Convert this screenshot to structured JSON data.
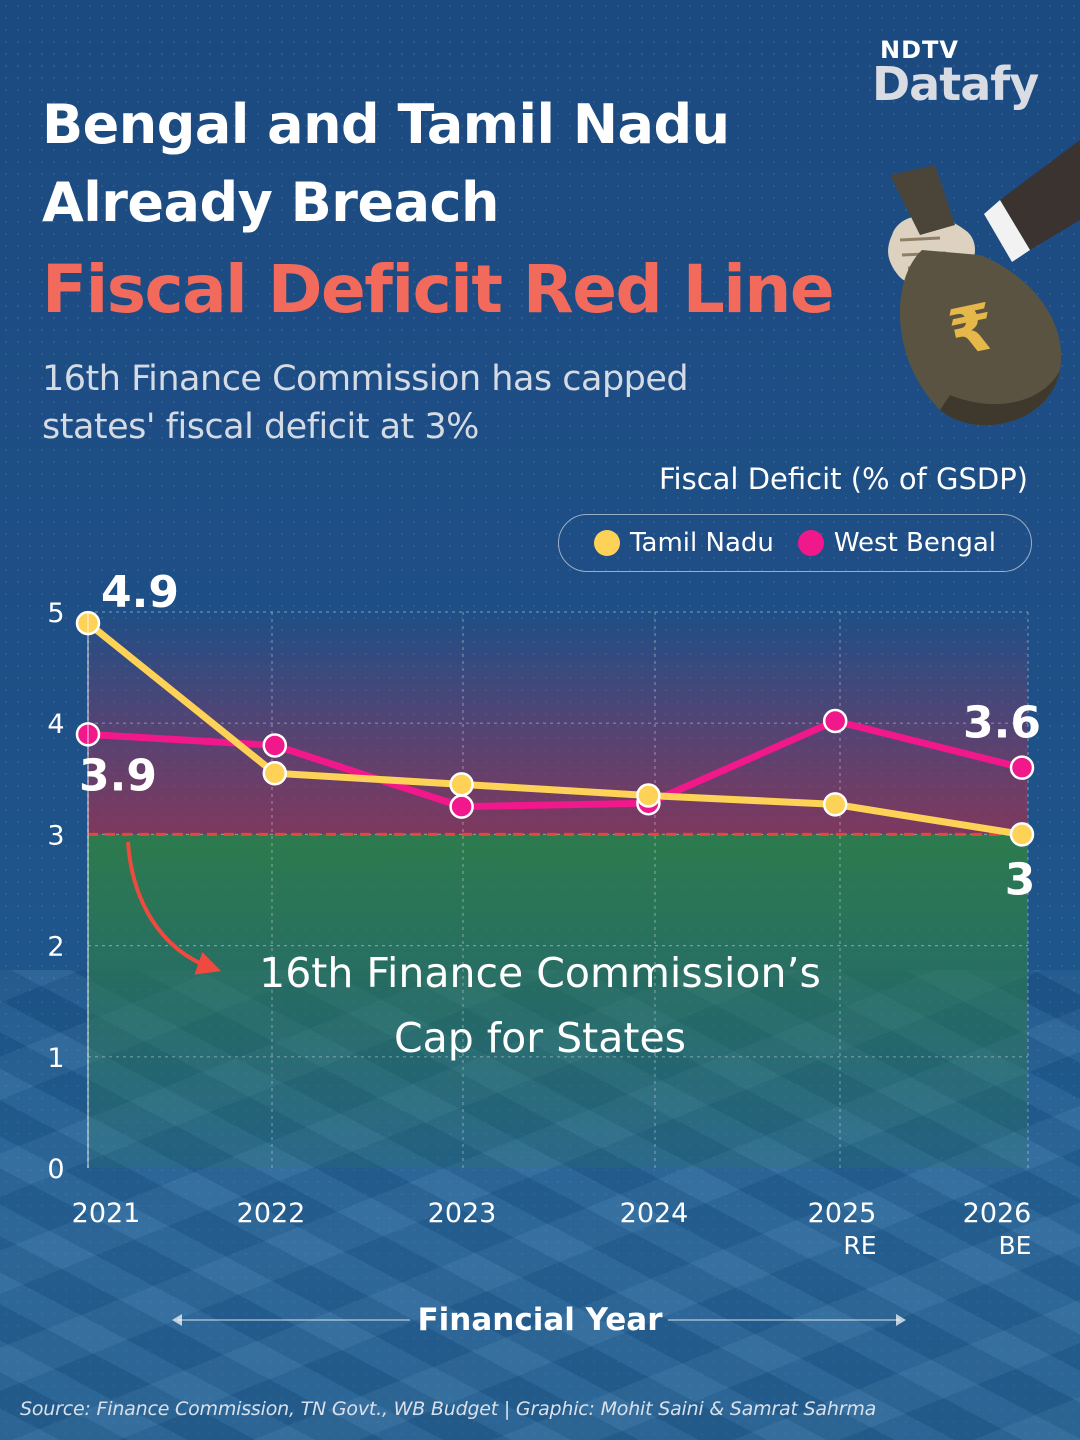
{
  "brand": {
    "ndtv": "NDTV",
    "datafy": "Datafy"
  },
  "header": {
    "title_line1": "Bengal and Tamil Nadu",
    "title_line2": "Already Breach",
    "title_highlight": "Fiscal Deficit Red Line",
    "subtitle_line1": "16th Finance Commission has capped",
    "subtitle_line2": "states' fiscal deficit at 3%"
  },
  "colors": {
    "tamil_nadu": "#fdd257",
    "west_bengal": "#f0188a",
    "cap_line": "#e8453c",
    "title_highlight": "#f26a5c"
  },
  "icons": [
    "money-bag-icon",
    "rupee-icon",
    "hand-icon"
  ],
  "chart_data": {
    "type": "line",
    "title": "Fiscal Deficit (% of GSDP)",
    "xlabel": "Financial Year",
    "ylabel": "",
    "categories": [
      {
        "year": "2021",
        "sub": ""
      },
      {
        "year": "2022",
        "sub": ""
      },
      {
        "year": "2023",
        "sub": ""
      },
      {
        "year": "2024",
        "sub": ""
      },
      {
        "year": "2025",
        "sub": "RE"
      },
      {
        "year": "2026",
        "sub": "BE"
      }
    ],
    "ylim": [
      0,
      5
    ],
    "yticks": [
      "0",
      "1",
      "2",
      "3",
      "4",
      "5"
    ],
    "grid": true,
    "legend_position": "top-right",
    "series": [
      {
        "name": "Tamil Nadu",
        "values": [
          4.9,
          3.55,
          3.45,
          3.35,
          3.27,
          3.0
        ]
      },
      {
        "name": "West Bengal",
        "values": [
          3.9,
          3.8,
          3.25,
          3.28,
          4.02,
          3.6
        ]
      }
    ],
    "data_labels": [
      {
        "series": "Tamil Nadu",
        "index": 0,
        "text": "4.9"
      },
      {
        "series": "West Bengal",
        "index": 0,
        "text": "3.9"
      },
      {
        "series": "West Bengal",
        "index": 5,
        "text": "3.6"
      },
      {
        "series": "Tamil Nadu",
        "index": 5,
        "text": "3"
      }
    ],
    "reference_line": {
      "value": 3,
      "style": "dashed"
    },
    "annotation": {
      "line1": "16th Finance Commission’s",
      "line2": "Cap for States"
    }
  },
  "footer": {
    "source": "Source: Finance Commission, TN Govt., WB Budget  | Graphic: Mohit Saini & Samrat Sahrma"
  }
}
